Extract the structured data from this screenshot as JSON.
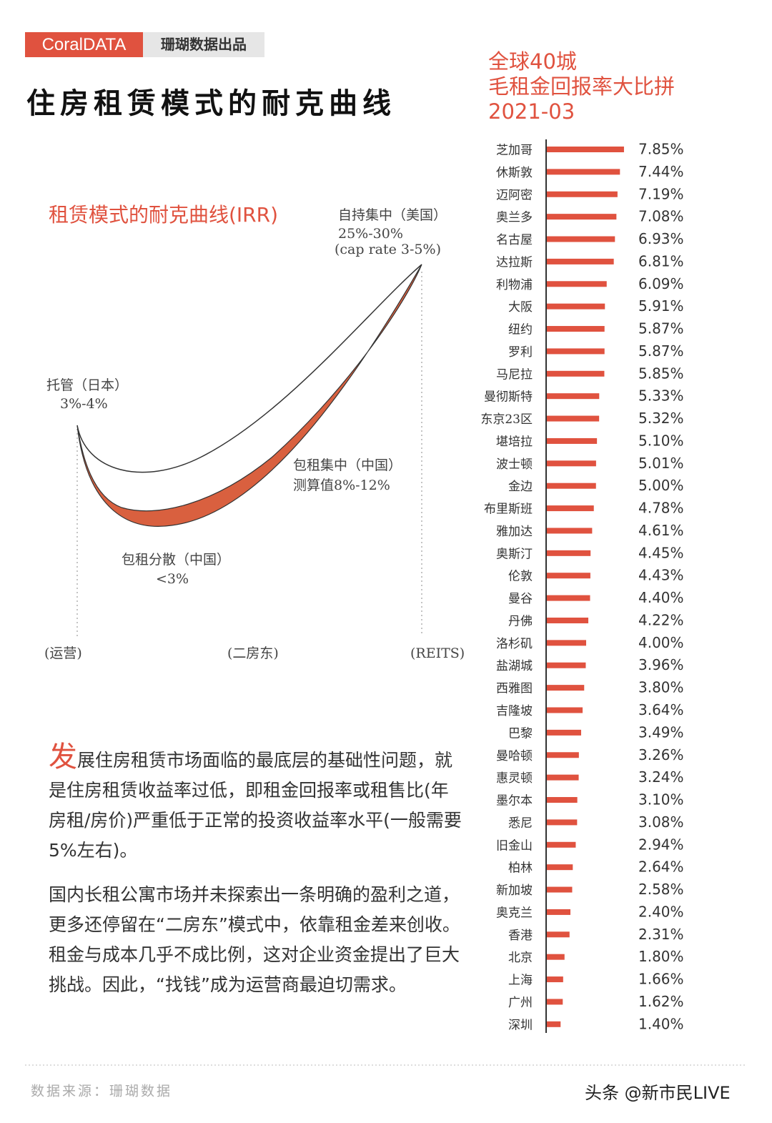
{
  "header": {
    "brand": "CoralDATA",
    "publisher": "珊瑚数据出品",
    "title": "住房租赁模式的耐克曲线"
  },
  "diagram": {
    "title": "租赁模式的耐克曲线(IRR)",
    "labels": [
      "托管（日本）",
      "3%-4%",
      "自持集中（美国）",
      "25%-30%",
      "(cap rate 3-5%)",
      "包租集中（中国）",
      "测算值8%-12%",
      "包租分散（中国）",
      "<3%",
      "(运营)",
      "(二房东)",
      "(REITS)"
    ]
  },
  "paragraphs": {
    "drop_cap": "发",
    "first": "展住房租赁市场面临的最底层的基础性问题，就是住房租赁收益率过低，即租金回报率或租售比(年房租/房价)严重低于正常的投资收益率水平(一般需要5%左右)。",
    "second": "国内长租公寓市场并未探索出一条明确的盈利之道，更多还停留在“二房东”模式中，依靠租金差来创收。租金与成本几乎不成比例，这对企业资金提出了巨大挑战。因此，“找钱”成为运营商最迫切需求。"
  },
  "footer": {
    "source": "数据来源：珊瑚数据",
    "watermark": "头条 @新市民LIVE"
  },
  "chart_data": {
    "type": "bar",
    "orientation": "horizontal",
    "title": [
      "全球40城",
      "毛租金回报率大比拼",
      "2021-03"
    ],
    "categories": [
      "芝加哥",
      "休斯敦",
      "迈阿密",
      "奥兰多",
      "名古屋",
      "达拉斯",
      "利物浦",
      "大阪",
      "纽约",
      "罗利",
      "马尼拉",
      "曼彻斯特",
      "东京23区",
      "堪培拉",
      "波士顿",
      "金边",
      "布里斯班",
      "雅加达",
      "奥斯汀",
      "伦敦",
      "曼谷",
      "丹佛",
      "洛杉矶",
      "盐湖城",
      "西雅图",
      "吉隆坡",
      "巴黎",
      "曼哈顿",
      "惠灵顿",
      "墨尔本",
      "悉尼",
      "旧金山",
      "柏林",
      "新加坡",
      "奥克兰",
      "香港",
      "北京",
      "上海",
      "广州",
      "深圳"
    ],
    "values": [
      7.85,
      7.44,
      7.19,
      7.08,
      6.93,
      6.81,
      6.09,
      5.91,
      5.87,
      5.87,
      5.85,
      5.33,
      5.32,
      5.1,
      5.01,
      5.0,
      4.78,
      4.61,
      4.45,
      4.43,
      4.4,
      4.22,
      4.0,
      3.96,
      3.8,
      3.64,
      3.49,
      3.26,
      3.24,
      3.1,
      3.08,
      2.94,
      2.64,
      2.58,
      2.4,
      2.31,
      1.8,
      1.66,
      1.62,
      1.4
    ],
    "value_labels": [
      "7.85%",
      "7.44%",
      "7.19%",
      "7.08%",
      "6.93%",
      "6.81%",
      "6.09%",
      "5.91%",
      "5.87%",
      "5.87%",
      "5.85%",
      "5.33%",
      "5.32%",
      "5.10%",
      "5.01%",
      "5.00%",
      "4.78%",
      "4.61%",
      "4.45%",
      "4.43%",
      "4.40%",
      "4.22%",
      "4.00%",
      "3.96%",
      "3.80%",
      "3.64%",
      "3.49%",
      "3.26%",
      "3.24%",
      "3.10%",
      "3.08%",
      "2.94%",
      "2.64%",
      "2.58%",
      "2.40%",
      "2.31%",
      "1.80%",
      "1.66%",
      "1.62%",
      "1.40%"
    ],
    "color": "#e0523f",
    "xlim": [
      0,
      8
    ]
  }
}
